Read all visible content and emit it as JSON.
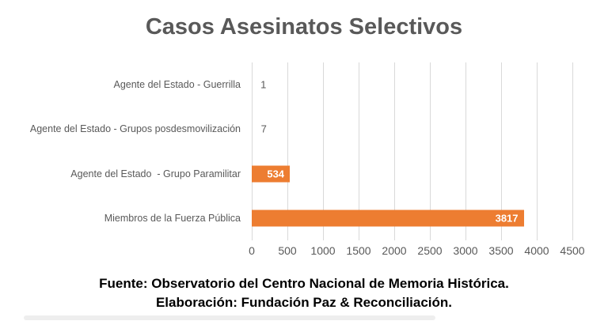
{
  "chart_data": {
    "type": "bar",
    "orientation": "horizontal",
    "title": "Casos Asesinatos Selectivos",
    "categories": [
      "Agente del Estado - Guerrilla",
      "Agente del Estado - Grupos posdesmovilización",
      "Agente del Estado  - Grupo Paramilitar",
      "Miembros de la Fuerza Pública"
    ],
    "values": [
      1,
      7,
      534,
      3817
    ],
    "value_labels": [
      "1",
      "7",
      "534",
      "3817"
    ],
    "x_ticks": [
      0,
      500,
      1000,
      1500,
      2000,
      2500,
      3000,
      3500,
      4000,
      4500
    ],
    "xlim": [
      0,
      4500
    ],
    "xlabel": "",
    "ylabel": "",
    "grid": true,
    "legend": false,
    "bar_color": "#ED7D31",
    "gridline_color": "#D9D9D9",
    "text_color": "#595959",
    "inside_label_color": "#FFFFFF"
  },
  "footer": {
    "line1": "Fuente: Observatorio del Centro Nacional de Memoria Histórica.",
    "line2": "Elaboración: Fundación Paz & Reconciliación."
  }
}
